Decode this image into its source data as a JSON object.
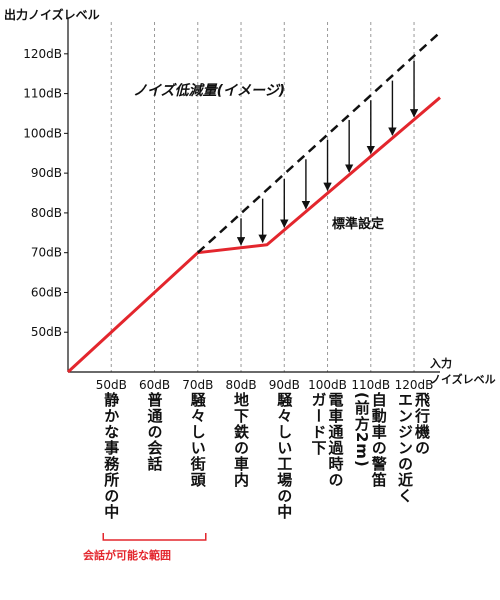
{
  "chart_data": {
    "type": "line",
    "ylabel": "出力ノイズレベル",
    "xlabel_line1": "入力",
    "xlabel_line2": "ノイズレベル",
    "title": "ノイズ低減量(イメージ)",
    "x_ticks": [
      "50dB",
      "60dB",
      "70dB",
      "80dB",
      "90dB",
      "100dB",
      "110dB",
      "120dB"
    ],
    "y_ticks": [
      "50dB",
      "60dB",
      "70dB",
      "80dB",
      "90dB",
      "100dB",
      "110dB",
      "120dB"
    ],
    "x_tick_values": [
      50,
      60,
      70,
      80,
      90,
      100,
      110,
      120
    ],
    "y_tick_values": [
      50,
      60,
      70,
      80,
      90,
      100,
      110,
      120
    ],
    "xlim": [
      40,
      126
    ],
    "ylim": [
      40,
      128
    ],
    "grid": "vertical-dashed",
    "series": [
      {
        "name": "標準設定",
        "style": "solid",
        "color": "#e3262d",
        "x": [
          40,
          70,
          86,
          126
        ],
        "y": [
          40,
          70,
          72,
          109
        ]
      },
      {
        "name": "",
        "style": "dashed",
        "color": "#111111",
        "x": [
          70,
          126
        ],
        "y": [
          70,
          125.4
        ]
      }
    ],
    "reduction_arrows_x": [
      80,
      85,
      90,
      95,
      100,
      105,
      110,
      115,
      120
    ],
    "reduction_label": "ノイズ低減量(イメージ)",
    "std_label": "標準設定",
    "situations": [
      {
        "x": 50,
        "lines": [
          "静かな事務所の中"
        ]
      },
      {
        "x": 60,
        "lines": [
          "普通の会話"
        ]
      },
      {
        "x": 70,
        "lines": [
          "騒々しい街頭"
        ]
      },
      {
        "x": 80,
        "lines": [
          "地下鉄の車内"
        ]
      },
      {
        "x": 90,
        "lines": [
          "騒々しい工場の中"
        ]
      },
      {
        "x": 100,
        "lines": [
          "電車通過時の",
          "ガード下"
        ]
      },
      {
        "x": 110,
        "lines": [
          "自動車の警笛",
          "(前方2m)"
        ]
      },
      {
        "x": 120,
        "lines": [
          "飛行機の",
          "エンジンの近く"
        ]
      }
    ],
    "range_note": "会話が可能な範囲",
    "range_x": [
      50,
      70
    ],
    "colors": {
      "red": "#e3262d",
      "black": "#111111",
      "grid": "#9a9a9a"
    }
  }
}
